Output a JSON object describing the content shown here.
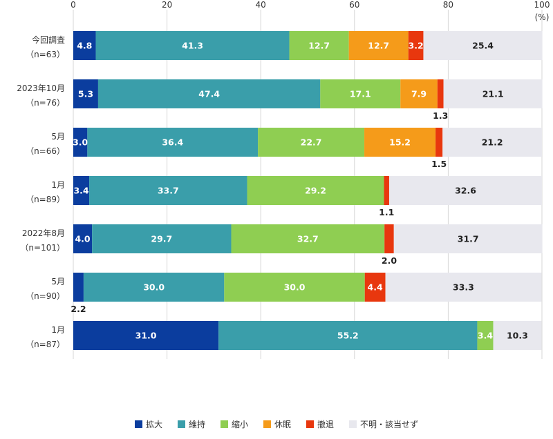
{
  "chart_data": {
    "type": "bar",
    "orientation": "horizontal",
    "stacked": true,
    "unit_label": "(%)",
    "xlim": [
      0,
      100
    ],
    "x_ticks": [
      0,
      20,
      40,
      60,
      80,
      100
    ],
    "grid": true,
    "legend_position": "bottom",
    "categories": [
      {
        "label": "今回調査",
        "sublabel": "（n=63）"
      },
      {
        "label": "2023年10月",
        "sublabel": "（n=76）"
      },
      {
        "label": "5月",
        "sublabel": "（n=66）"
      },
      {
        "label": "1月",
        "sublabel": "（n=89）"
      },
      {
        "label": "2022年8月",
        "sublabel": "（n=101）"
      },
      {
        "label": "5月",
        "sublabel": "（n=90）"
      },
      {
        "label": "1月",
        "sublabel": "（n=87）"
      }
    ],
    "series": [
      {
        "name": "拡大",
        "color": "#0b3d9e",
        "label_color": "#ffffff",
        "values": [
          4.8,
          5.3,
          3.0,
          3.4,
          4.0,
          2.2,
          31.0
        ]
      },
      {
        "name": "維持",
        "color": "#3a9eaa",
        "label_color": "#ffffff",
        "values": [
          41.3,
          47.4,
          36.4,
          33.7,
          29.7,
          30.0,
          55.2
        ]
      },
      {
        "name": "縮小",
        "color": "#8fce52",
        "label_color": "#ffffff",
        "values": [
          12.7,
          17.1,
          22.7,
          29.2,
          32.7,
          30.0,
          3.4
        ]
      },
      {
        "name": "休眠",
        "color": "#f59b1a",
        "label_color": "#ffffff",
        "values": [
          12.7,
          7.9,
          15.2,
          0,
          0,
          0,
          0
        ]
      },
      {
        "name": "撤退",
        "color": "#e8370e",
        "label_color": "#ffffff",
        "values": [
          3.2,
          1.3,
          1.5,
          1.1,
          2.0,
          4.4,
          0
        ]
      },
      {
        "name": "不明・該当せず",
        "color": "#e8e8ee",
        "label_color": "#222222",
        "values": [
          25.4,
          21.1,
          21.2,
          32.6,
          31.7,
          33.3,
          10.3
        ]
      }
    ]
  }
}
